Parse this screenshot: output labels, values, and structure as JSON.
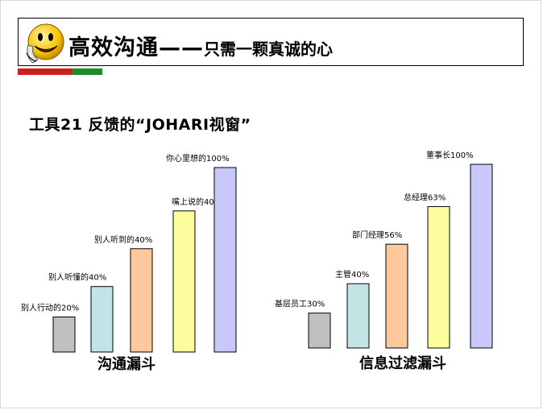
{
  "header": {
    "title_main": "高效沟通——",
    "title_sub": "只需一颗真诚的心"
  },
  "section": {
    "subtitle": "工具21 反馈的“JOHARI视窗”"
  },
  "colors": {
    "accent_red": "#cc1f1f",
    "accent_green": "#1f8a2a"
  },
  "chart_data": [
    {
      "type": "bar",
      "title": "沟通漏斗",
      "categories": [
        "别人行动的",
        "别人听懂的",
        "别人听到的",
        "嘴上说的",
        "你心里想的"
      ],
      "labels": [
        "别人行动的20%",
        "别人听懂的40%",
        "别人听到的40%",
        "嘴上说的40%",
        "你心里想的100%"
      ],
      "values": [
        20,
        40,
        40,
        40,
        100
      ],
      "colors": [
        "#c0c0c0",
        "#c3e4e4",
        "#fcc89c",
        "#fcfc9c",
        "#c8c8fc"
      ],
      "heights": [
        0.19,
        0.355,
        0.56,
        0.765,
        1.0
      ]
    },
    {
      "type": "bar",
      "title": "信息过滤漏斗",
      "categories": [
        "基层员工",
        "主管",
        "部门经理",
        "总经理",
        "董事长"
      ],
      "labels": [
        "基层员工30%",
        "主管40%",
        "部门经理56%",
        "总经理63%",
        "董事长100%"
      ],
      "values": [
        30,
        40,
        56,
        63,
        100
      ],
      "colors": [
        "#c0c0c0",
        "#c3e4e4",
        "#fcc89c",
        "#fcfc9c",
        "#c8c8fc"
      ],
      "heights": [
        0.19,
        0.35,
        0.565,
        0.77,
        1.0
      ]
    }
  ]
}
